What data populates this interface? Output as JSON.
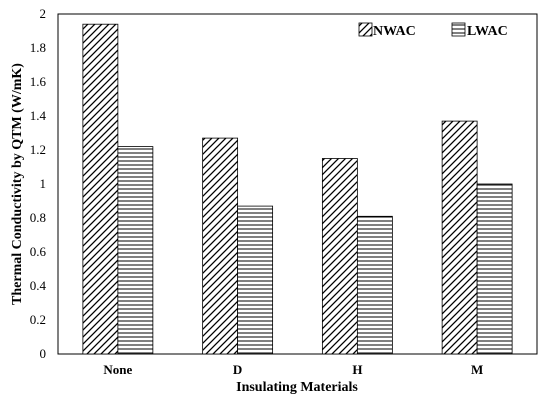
{
  "chart_data": {
    "type": "bar",
    "categories": [
      "None",
      "D",
      "H",
      "M"
    ],
    "series": [
      {
        "name": "NWAC",
        "values": [
          1.94,
          1.27,
          1.15,
          1.37
        ],
        "pattern": "diagonal"
      },
      {
        "name": "LWAC",
        "values": [
          1.22,
          0.87,
          0.81,
          1.0
        ],
        "pattern": "horizontal"
      }
    ],
    "xlabel": "Insulating Materials",
    "ylabel": "Thermal Conductivity by QTM (W/mK)",
    "ylim": [
      0,
      2
    ],
    "yticks": [
      "0",
      "0.2",
      "0.4",
      "0.6",
      "0.8",
      "1",
      "1.2",
      "1.4",
      "1.6",
      "1.8",
      "2"
    ],
    "grid": false,
    "legend_position": "top-right",
    "colors": {
      "stroke": "#000000",
      "background": "#ffffff"
    }
  }
}
